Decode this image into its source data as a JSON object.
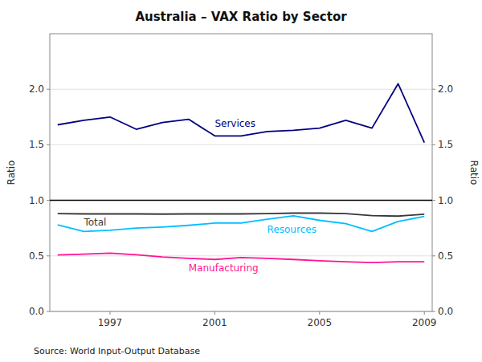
{
  "chart_data": {
    "type": "line",
    "title": "Australia – VAX Ratio by Sector",
    "ylabel": "Ratio",
    "y2label": "Ratio",
    "source": "Source: World Input-Output Database",
    "x": [
      1995,
      1996,
      1997,
      1998,
      1999,
      2000,
      2001,
      2002,
      2003,
      2004,
      2005,
      2006,
      2007,
      2008,
      2009
    ],
    "series": [
      {
        "name": "Services",
        "color": "#000080",
        "values": [
          1.68,
          1.72,
          1.75,
          1.64,
          1.7,
          1.73,
          1.58,
          1.58,
          1.62,
          1.63,
          1.65,
          1.72,
          1.65,
          2.05,
          1.52
        ]
      },
      {
        "name": "Total",
        "color": "#383838",
        "values": [
          0.88,
          0.878,
          0.878,
          0.878,
          0.876,
          0.878,
          0.878,
          0.878,
          0.88,
          0.885,
          0.885,
          0.88,
          0.862,
          0.858,
          0.875
        ]
      },
      {
        "name": "Resources",
        "color": "#00BFFF",
        "values": [
          0.78,
          0.72,
          0.73,
          0.75,
          0.76,
          0.775,
          0.795,
          0.795,
          0.83,
          0.86,
          0.82,
          0.79,
          0.72,
          0.81,
          0.855
        ]
      },
      {
        "name": "Manufacturing",
        "color": "#FF1493",
        "values": [
          0.508,
          0.515,
          0.525,
          0.51,
          0.49,
          0.478,
          0.468,
          0.485,
          0.478,
          0.468,
          0.456,
          0.447,
          0.44,
          0.447,
          0.447
        ]
      }
    ],
    "hline": 1.0,
    "ylim": [
      0.0,
      2.5
    ],
    "yticks": [
      {
        "value": 0.0,
        "label": "0.0"
      },
      0.5,
      {
        "value": 1.0,
        "label": "1.0"
      },
      1.5,
      {
        "value": 2.0,
        "label": "2.0"
      }
    ],
    "y2lim": [
      0.0,
      2.5
    ],
    "y2ticks": [
      {
        "value": 0.0,
        "label": "0.0"
      },
      0.5,
      {
        "value": 1.0,
        "label": "1.0"
      },
      1.5,
      {
        "value": 2.0,
        "label": "2.0"
      }
    ],
    "xlim": [
      1994.7,
      2009.3
    ],
    "xticks": [
      1997,
      2001,
      2005,
      2009
    ],
    "grid": true
  }
}
